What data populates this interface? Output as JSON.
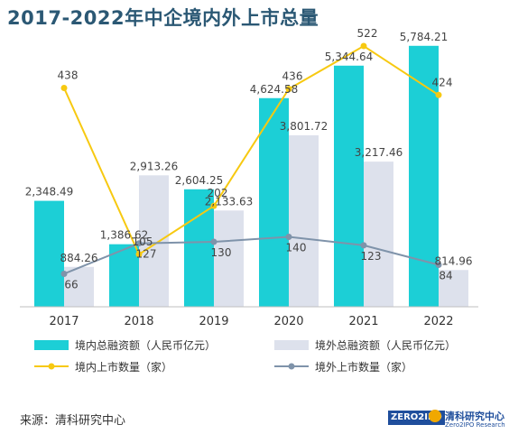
{
  "title": "2017-2022年中企境内外上市总量",
  "source": "来源：清科研究中心",
  "logo": {
    "mark": "ZERO2IPO",
    "cn": "清科研究中心",
    "en": "Zero2IPO Research"
  },
  "colors": {
    "domestic_bar": "#1ccfd6",
    "overseas_bar": "#dde1ec",
    "domestic_line": "#f7c911",
    "overseas_line": "#7f93aa",
    "label_text": "#444444"
  },
  "chart_data": {
    "type": "bar",
    "categories": [
      "2017",
      "2018",
      "2019",
      "2020",
      "2021",
      "2022"
    ],
    "series": [
      {
        "name": "境内总融资额（人民币亿元）",
        "type": "bar",
        "axis": "left",
        "values": [
          2348.49,
          1386.62,
          2604.25,
          4624.58,
          5344.64,
          5784.21
        ],
        "labels": [
          "2,348.49",
          "1,386.62",
          "2,604.25",
          "4,624.58",
          "5,344.64",
          "5,784.21"
        ]
      },
      {
        "name": "境外总融资额（人民币亿元）",
        "type": "bar",
        "axis": "left",
        "values": [
          884.26,
          2913.26,
          2133.63,
          3801.72,
          3217.46,
          814.96
        ],
        "labels": [
          "884.26",
          "2,913.26",
          "2,133.63",
          "3,801.72",
          "3,217.46",
          "814.96"
        ]
      },
      {
        "name": "境内上市数量（家）",
        "type": "line",
        "axis": "right",
        "values": [
          438,
          105,
          202,
          436,
          522,
          424
        ],
        "labels": [
          "438",
          "105",
          "202",
          "436",
          "522",
          "424"
        ]
      },
      {
        "name": "境外上市数量（家）",
        "type": "line",
        "axis": "right",
        "values": [
          66,
          127,
          130,
          140,
          123,
          84
        ],
        "labels": [
          "66",
          "127",
          "130",
          "140",
          "123",
          "84"
        ]
      }
    ],
    "ylim_left": [
      0,
      6200
    ],
    "ylim_right": [
      0,
      560
    ],
    "grid": false,
    "legend_position": "bottom"
  }
}
